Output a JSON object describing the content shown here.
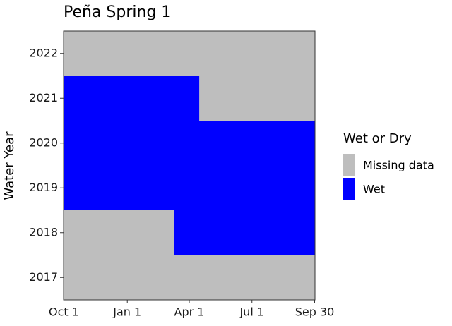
{
  "chart_data": {
    "type": "tile",
    "title": "Peña Spring 1",
    "y_label": "Water Year",
    "xlim": [
      0.5,
      365.5
    ],
    "ylim": [
      2016.5,
      2022.5
    ],
    "xticks": [
      {
        "value": 1,
        "label": "Oct 1"
      },
      {
        "value": 93,
        "label": "Jan 1"
      },
      {
        "value": 183,
        "label": "Apr 1"
      },
      {
        "value": 274,
        "label": "Jul 1"
      },
      {
        "value": 365,
        "label": "Sep 30"
      }
    ],
    "yticks": [
      2017,
      2018,
      2019,
      2020,
      2021,
      2022
    ],
    "legend_title": "Wet or Dry",
    "legend_position": "right",
    "series": [
      {
        "name": "Missing data",
        "color": "#bebebe",
        "segments": [
          {
            "y": 2022,
            "x": [
              1,
              365
            ]
          },
          {
            "y": 2021,
            "x": [
              198,
              365
            ]
          },
          {
            "y": 2018,
            "x": [
              1,
              160
            ]
          },
          {
            "y": 2017,
            "x": [
              1,
              365
            ]
          }
        ]
      },
      {
        "name": "Wet",
        "color": "#0000ff",
        "segments": [
          {
            "y": 2021,
            "x": [
              1,
              197
            ]
          },
          {
            "y": 2020,
            "x": [
              1,
              365
            ]
          },
          {
            "y": 2019,
            "x": [
              1,
              365
            ]
          },
          {
            "y": 2018,
            "x": [
              161,
              365
            ]
          }
        ]
      }
    ]
  }
}
